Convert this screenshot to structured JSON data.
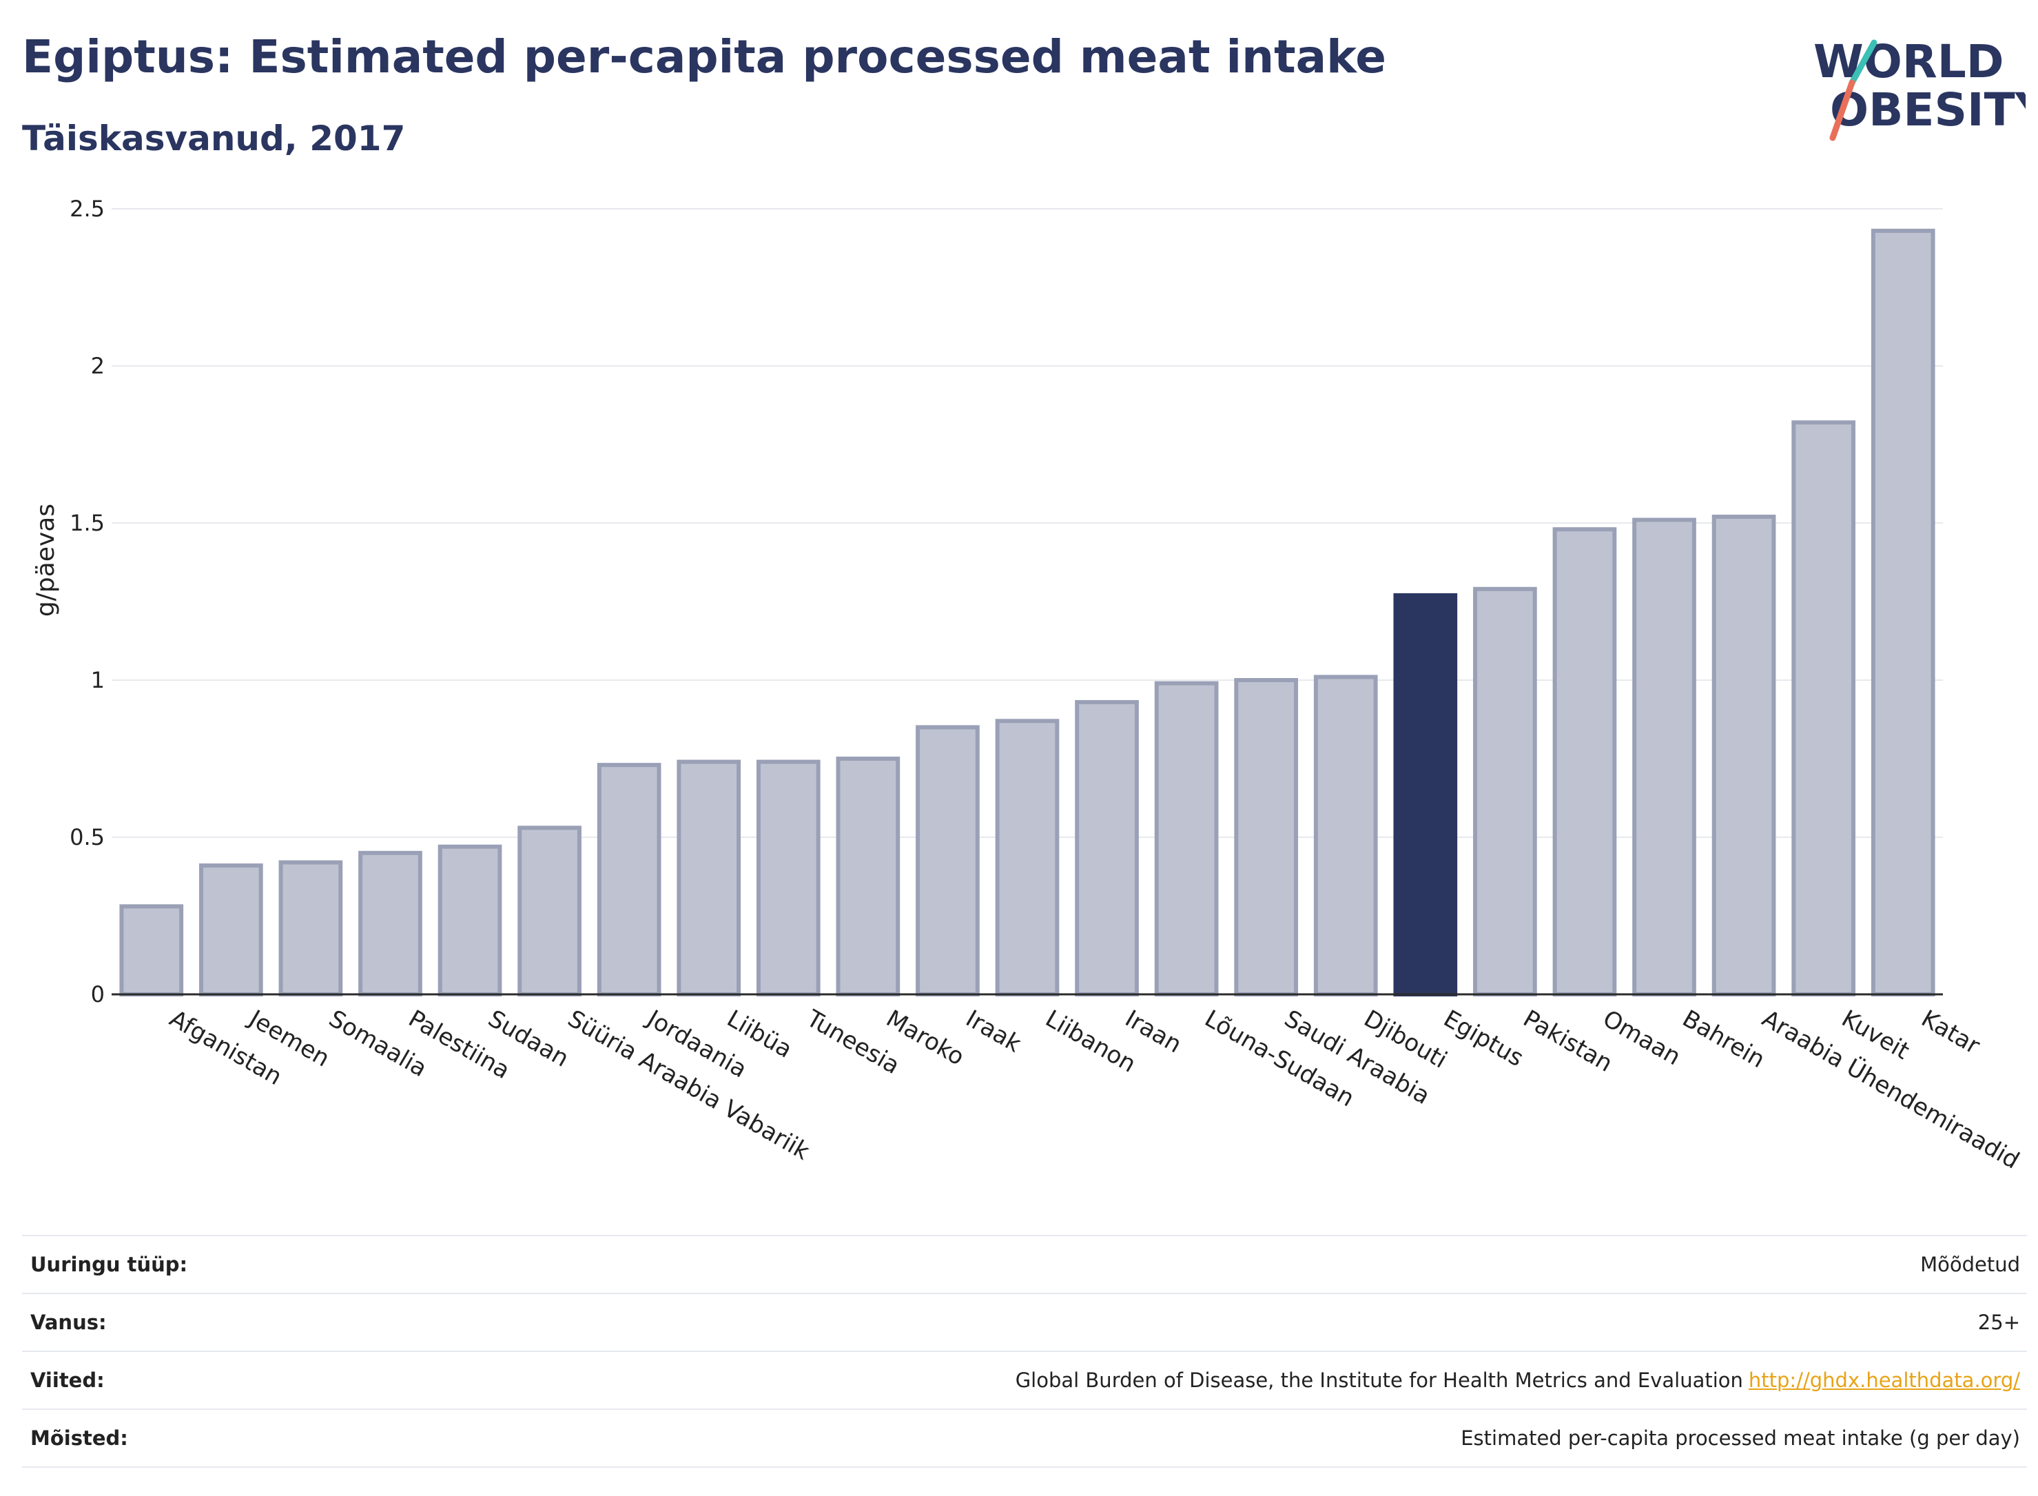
{
  "header": {
    "title": "Egiptus: Estimated per-capita processed meat intake",
    "subtitle": "Täiskasvanud, 2017"
  },
  "logo": {
    "line1": "WORLD",
    "line2": "OBESITY"
  },
  "colors": {
    "bar": "#bfc3d1",
    "bar_border": "#9aa0b6",
    "highlight": "#2a3560",
    "grid": "#e8e9ee"
  },
  "chart_data": {
    "type": "bar",
    "ylabel": "g/päevas",
    "xlabel": "",
    "ylim": [
      0,
      2.5
    ],
    "yticks": [
      0,
      0.5,
      1,
      1.5,
      2,
      2.5
    ],
    "ytick_labels": [
      "0",
      "0.5",
      "1",
      "1.5",
      "2",
      "2.5"
    ],
    "grid": true,
    "highlight": "Egiptus",
    "categories": [
      "Afganistan",
      "Jeemen",
      "Somaalia",
      "Palestiina",
      "Sudaan",
      "Süüria Araabia Vabariik",
      "Jordaania",
      "Liibüa",
      "Tuneesia",
      "Maroko",
      "Iraak",
      "Liibanon",
      "Iraan",
      "Lõuna-Sudaan",
      "Saudi Araabia",
      "Djibouti",
      "Egiptus",
      "Pakistan",
      "Omaan",
      "Bahrein",
      "Araabia Ühendemiraadid",
      "Kuveit",
      "Katar"
    ],
    "values": [
      0.28,
      0.41,
      0.42,
      0.45,
      0.47,
      0.53,
      0.73,
      0.74,
      0.74,
      0.75,
      0.85,
      0.87,
      0.93,
      0.99,
      1.0,
      1.01,
      1.27,
      1.29,
      1.48,
      1.51,
      1.52,
      1.82,
      2.43
    ]
  },
  "info": [
    {
      "label": "Uuringu tüüp:",
      "value": "Mõõdetud"
    },
    {
      "label": "Vanus:",
      "value": "25+"
    },
    {
      "label": "Viited:",
      "value": "Global Burden of Disease, the Institute for Health Metrics and Evaluation",
      "link": "http://ghdx.healthdata.org/"
    },
    {
      "label": "Mõisted:",
      "value": "Estimated per-capita processed meat intake (g per day)"
    }
  ]
}
